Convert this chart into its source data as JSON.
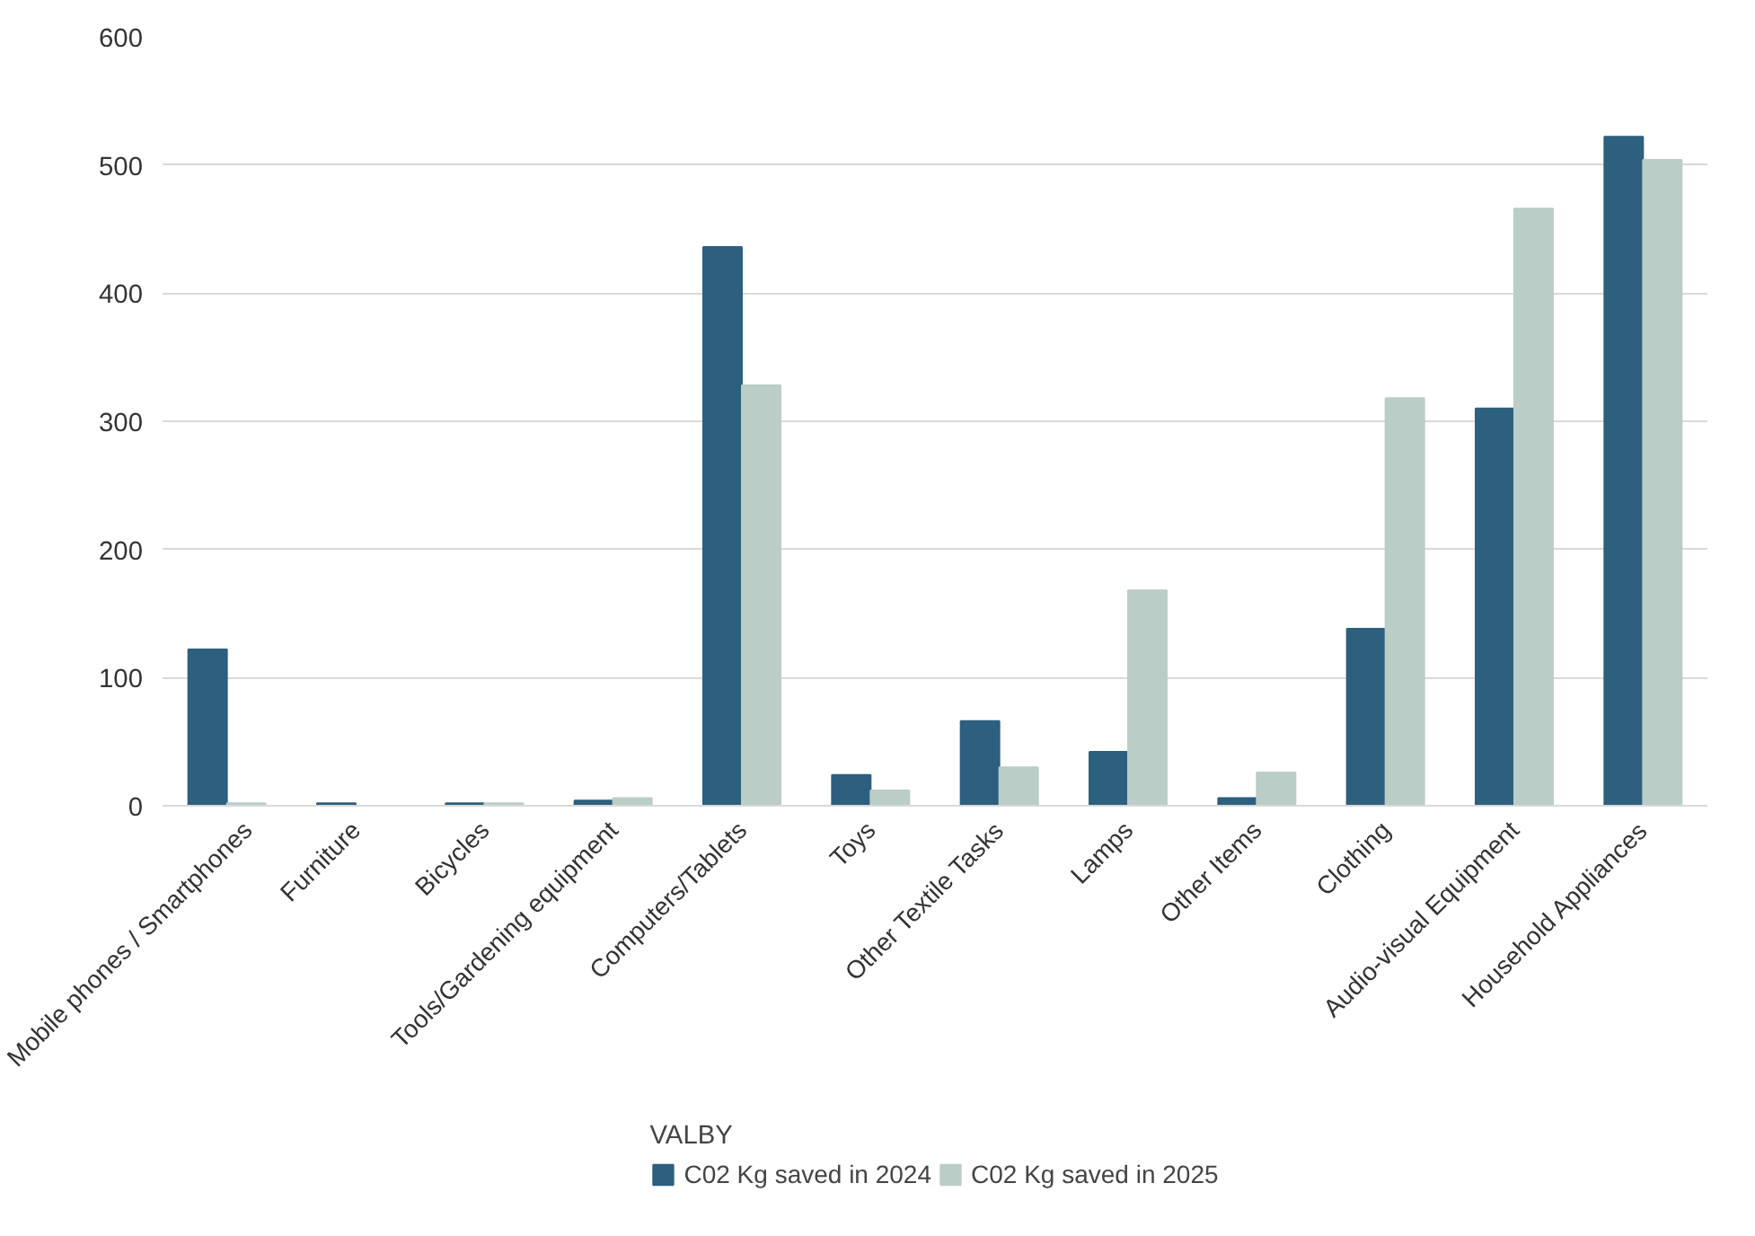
{
  "chart_data": {
    "type": "bar",
    "legend_title": "VALBY",
    "categories": [
      "Mobile phones / Smartphones",
      "Furniture",
      "Bicycles",
      "Tools/Gardening equipment",
      "Computers/Tablets",
      "Toys",
      "Other Textile Tasks",
      "Lamps",
      "Other Items",
      "Clothing",
      "Audio-visual Equipment",
      "Household Appliances"
    ],
    "series": [
      {
        "name": "C02 Kg saved in 2024",
        "color": "#2d5f7f",
        "values": [
          122,
          2,
          2,
          4,
          436,
          24,
          66,
          42,
          6,
          138,
          310,
          522
        ]
      },
      {
        "name": "C02 Kg saved in 2025",
        "color": "#bacdc6",
        "values": [
          2,
          0,
          2,
          6,
          328,
          12,
          30,
          168,
          26,
          318,
          466,
          504
        ]
      }
    ],
    "ylim": [
      0,
      600
    ],
    "yticks": [
      0,
      100,
      200,
      300,
      400,
      500,
      600
    ],
    "grid": "y",
    "legend": "bottom"
  }
}
